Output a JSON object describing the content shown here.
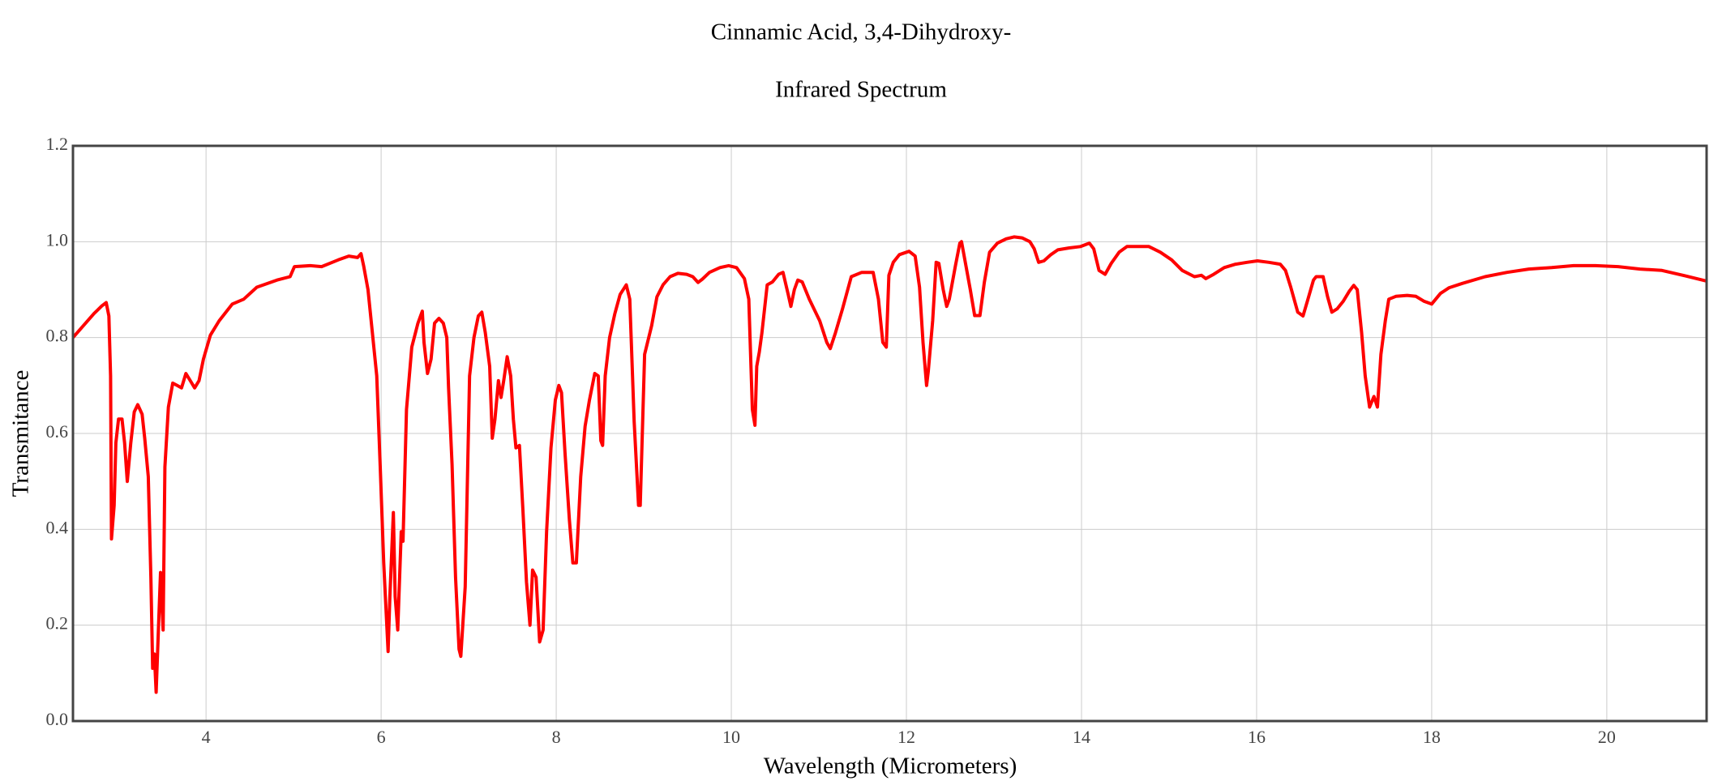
{
  "chart_data": {
    "type": "line",
    "title": "Cinnamic Acid, 3,4-Dihydroxy-",
    "subtitle": "Infrared Spectrum",
    "x_label": "Wavelength (Micrometers)",
    "y_label": "Transmitance",
    "color": "#ff0000",
    "grid": true,
    "xlim": [
      2.48,
      21.14
    ],
    "ylim": [
      0,
      1.2
    ],
    "xticks": [
      4,
      6,
      8,
      10,
      12,
      14,
      16,
      18,
      20
    ],
    "yticks": [
      {
        "value": 0,
        "label": "0.0"
      },
      0.2,
      0.4,
      0.6,
      0.8,
      {
        "value": 1,
        "label": "1.0"
      },
      1.2
    ],
    "x": [
      2.48,
      2.59,
      2.72,
      2.81,
      2.86,
      2.89,
      2.91,
      2.92,
      2.95,
      2.97,
      3.0,
      3.04,
      3.07,
      3.1,
      3.14,
      3.18,
      3.22,
      3.27,
      3.3,
      3.34,
      3.37,
      3.39,
      3.41,
      3.43,
      3.46,
      3.48,
      3.51,
      3.53,
      3.57,
      3.62,
      3.67,
      3.72,
      3.77,
      3.82,
      3.87,
      3.92,
      3.97,
      4.05,
      4.15,
      4.3,
      4.43,
      4.58,
      4.81,
      4.96,
      5.01,
      5.19,
      5.32,
      5.51,
      5.63,
      5.73,
      5.77,
      5.8,
      5.85,
      5.9,
      5.95,
      5.99,
      6.03,
      6.08,
      6.1,
      6.14,
      6.16,
      6.19,
      6.23,
      6.25,
      6.29,
      6.35,
      6.42,
      6.47,
      6.49,
      6.53,
      6.57,
      6.61,
      6.66,
      6.71,
      6.75,
      6.77,
      6.81,
      6.85,
      6.89,
      6.91,
      6.96,
      7.01,
      7.06,
      7.11,
      7.15,
      7.19,
      7.24,
      7.27,
      7.3,
      7.34,
      7.37,
      7.4,
      7.44,
      7.48,
      7.51,
      7.54,
      7.58,
      7.62,
      7.66,
      7.7,
      7.73,
      7.77,
      7.81,
      7.85,
      7.89,
      7.94,
      7.99,
      8.03,
      8.06,
      8.1,
      8.15,
      8.19,
      8.23,
      8.28,
      8.33,
      8.38,
      8.44,
      8.48,
      8.51,
      8.53,
      8.56,
      8.61,
      8.67,
      8.73,
      8.8,
      8.84,
      8.89,
      8.94,
      8.96,
      9.01,
      9.09,
      9.15,
      9.22,
      9.3,
      9.39,
      9.49,
      9.56,
      9.62,
      9.67,
      9.75,
      9.87,
      9.97,
      10.06,
      10.15,
      10.2,
      10.24,
      10.27,
      10.29,
      10.32,
      10.35,
      10.41,
      10.47,
      10.54,
      10.59,
      10.65,
      10.68,
      10.72,
      10.76,
      10.81,
      10.89,
      11.01,
      11.09,
      11.13,
      11.19,
      11.27,
      11.37,
      11.49,
      11.62,
      11.68,
      11.73,
      11.77,
      11.8,
      11.85,
      11.92,
      12.03,
      12.1,
      12.15,
      12.19,
      12.23,
      12.25,
      12.3,
      12.34,
      12.37,
      12.42,
      12.46,
      12.49,
      12.56,
      12.61,
      12.63,
      12.68,
      12.73,
      12.78,
      12.84,
      12.89,
      12.95,
      13.04,
      13.14,
      13.23,
      13.32,
      13.41,
      13.46,
      13.51,
      13.57,
      13.65,
      13.73,
      13.86,
      13.99,
      14.09,
      14.14,
      14.2,
      14.27,
      14.34,
      14.43,
      14.52,
      14.65,
      14.77,
      14.9,
      15.03,
      15.15,
      15.29,
      15.37,
      15.42,
      15.51,
      15.63,
      15.76,
      15.89,
      16.01,
      16.14,
      16.27,
      16.33,
      16.39,
      16.47,
      16.53,
      16.58,
      16.65,
      16.68,
      16.76,
      16.81,
      16.86,
      16.92,
      16.99,
      17.06,
      17.11,
      17.15,
      17.2,
      17.24,
      17.29,
      17.34,
      17.38,
      17.42,
      17.47,
      17.51,
      17.59,
      17.72,
      17.82,
      17.91,
      18.0,
      18.1,
      18.2,
      18.35,
      18.61,
      18.86,
      19.11,
      19.37,
      19.62,
      19.87,
      20.13,
      20.38,
      20.63,
      20.89,
      21.14
    ],
    "values": [
      0.8,
      0.823,
      0.85,
      0.866,
      0.873,
      0.845,
      0.72,
      0.38,
      0.45,
      0.58,
      0.63,
      0.63,
      0.58,
      0.5,
      0.58,
      0.645,
      0.66,
      0.64,
      0.59,
      0.51,
      0.3,
      0.11,
      0.14,
      0.06,
      0.21,
      0.31,
      0.19,
      0.53,
      0.655,
      0.705,
      0.7,
      0.695,
      0.725,
      0.71,
      0.695,
      0.71,
      0.755,
      0.805,
      0.835,
      0.87,
      0.88,
      0.905,
      0.92,
      0.927,
      0.948,
      0.95,
      0.948,
      0.962,
      0.97,
      0.967,
      0.975,
      0.95,
      0.9,
      0.81,
      0.72,
      0.53,
      0.33,
      0.145,
      0.26,
      0.435,
      0.26,
      0.19,
      0.395,
      0.375,
      0.65,
      0.78,
      0.83,
      0.855,
      0.79,
      0.725,
      0.755,
      0.83,
      0.84,
      0.83,
      0.8,
      0.695,
      0.535,
      0.3,
      0.15,
      0.135,
      0.28,
      0.72,
      0.8,
      0.845,
      0.853,
      0.81,
      0.74,
      0.59,
      0.63,
      0.71,
      0.675,
      0.71,
      0.76,
      0.72,
      0.63,
      0.57,
      0.575,
      0.44,
      0.29,
      0.2,
      0.315,
      0.3,
      0.165,
      0.19,
      0.395,
      0.57,
      0.67,
      0.7,
      0.685,
      0.56,
      0.42,
      0.33,
      0.33,
      0.51,
      0.615,
      0.67,
      0.725,
      0.72,
      0.585,
      0.575,
      0.72,
      0.8,
      0.85,
      0.89,
      0.91,
      0.88,
      0.625,
      0.45,
      0.45,
      0.765,
      0.825,
      0.885,
      0.91,
      0.927,
      0.934,
      0.932,
      0.927,
      0.915,
      0.922,
      0.936,
      0.946,
      0.95,
      0.946,
      0.923,
      0.88,
      0.65,
      0.617,
      0.74,
      0.77,
      0.81,
      0.91,
      0.916,
      0.932,
      0.936,
      0.89,
      0.865,
      0.9,
      0.92,
      0.916,
      0.88,
      0.835,
      0.79,
      0.777,
      0.81,
      0.86,
      0.927,
      0.936,
      0.936,
      0.88,
      0.79,
      0.78,
      0.93,
      0.957,
      0.973,
      0.98,
      0.97,
      0.905,
      0.79,
      0.7,
      0.73,
      0.835,
      0.957,
      0.955,
      0.9,
      0.865,
      0.88,
      0.95,
      0.997,
      1.0,
      0.95,
      0.9,
      0.846,
      0.846,
      0.915,
      0.978,
      0.997,
      1.006,
      1.01,
      1.008,
      1.0,
      0.985,
      0.957,
      0.96,
      0.973,
      0.983,
      0.987,
      0.99,
      0.997,
      0.985,
      0.94,
      0.932,
      0.955,
      0.978,
      0.99,
      0.99,
      0.99,
      0.978,
      0.962,
      0.94,
      0.927,
      0.93,
      0.923,
      0.932,
      0.946,
      0.953,
      0.957,
      0.96,
      0.957,
      0.953,
      0.94,
      0.905,
      0.853,
      0.845,
      0.876,
      0.92,
      0.927,
      0.927,
      0.886,
      0.853,
      0.86,
      0.876,
      0.897,
      0.909,
      0.9,
      0.81,
      0.72,
      0.655,
      0.677,
      0.655,
      0.765,
      0.835,
      0.88,
      0.886,
      0.888,
      0.886,
      0.876,
      0.87,
      0.892,
      0.904,
      0.913,
      0.927,
      0.936,
      0.943,
      0.946,
      0.95,
      0.95,
      0.948,
      0.943,
      0.94,
      0.929,
      0.918
    ]
  }
}
